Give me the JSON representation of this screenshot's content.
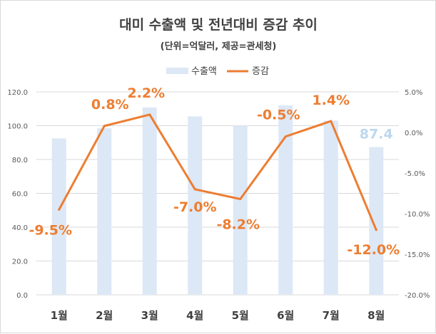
{
  "chart_data": {
    "type": "bar+line",
    "title": "대미 수출액 및 전년대비 증감 추이",
    "subtitle": "(단위=억달러, 제공=관세청)",
    "categories": [
      "1월",
      "2월",
      "3월",
      "4월",
      "5월",
      "6월",
      "7월",
      "8월"
    ],
    "series": [
      {
        "name": "수출액",
        "type": "bar",
        "axis": "left",
        "color": "#dde8f6",
        "values": [
          92.5,
          98.5,
          110.8,
          105.5,
          100.0,
          112.0,
          103.0,
          87.4
        ],
        "labels": [
          "",
          "",
          "",
          "",
          "",
          "",
          "",
          "87.4"
        ],
        "label_color": "#bdd7ee"
      },
      {
        "name": "증감",
        "type": "line",
        "axis": "right",
        "color": "#ed7d31",
        "values": [
          -9.5,
          0.8,
          2.2,
          -7.0,
          -8.2,
          -0.5,
          1.4,
          -12.0
        ],
        "labels": [
          "-9.5%",
          "0.8%",
          "2.2%",
          "-7.0%",
          "-8.2%",
          "-0.5%",
          "1.4%",
          "-12.0%"
        ]
      }
    ],
    "y_left": {
      "min": 0,
      "max": 120,
      "step": 20,
      "ticks": [
        "0.0",
        "20.0",
        "40.0",
        "60.0",
        "80.0",
        "100.0",
        "120.0"
      ]
    },
    "y_right": {
      "min": -20,
      "max": 5,
      "step": 5,
      "ticks": [
        "-20.0%",
        "-15.0%",
        "-10.0%",
        "-5.0%",
        "0.0%",
        "5.0%"
      ]
    },
    "grid": true,
    "legend_position": "top"
  }
}
